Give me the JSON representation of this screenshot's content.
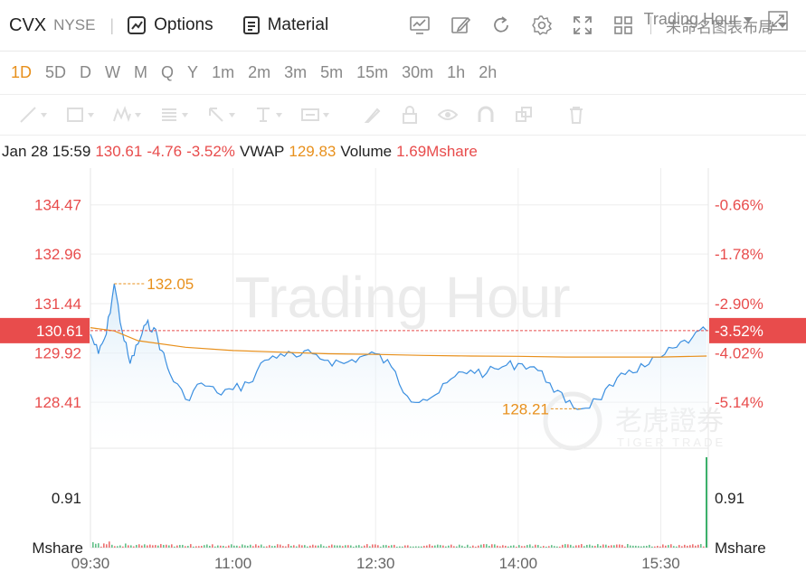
{
  "header": {
    "ticker": "CVX",
    "exchange": "NYSE",
    "options_label": "Options",
    "material_label": "Material",
    "layout_label": "未命名图表布局"
  },
  "periods": [
    "1D",
    "5D",
    "D",
    "W",
    "M",
    "Q",
    "Y",
    "1m",
    "2m",
    "3m",
    "5m",
    "15m",
    "30m",
    "1h",
    "2h"
  ],
  "active_period": "1D",
  "session_label": "Trading Hour",
  "info": {
    "datetime": "Jan 28 15:59",
    "price": "130.61",
    "change": "-4.76",
    "change_pct": "-3.52%",
    "vwap_label": "VWAP",
    "vwap_value": "129.83",
    "volume_label": "Volume",
    "volume_value": "1.69Mshare"
  },
  "colors": {
    "down": "#e84c4c",
    "vwap": "#e8901c",
    "price_line": "#3b8fe0",
    "grid": "#eeeeee"
  },
  "watermark": {
    "text": "Trading Hour",
    "brand_cn": "老虎證券",
    "brand_en": "TIGER TRADE"
  },
  "chart_data": {
    "type": "line",
    "x_ticks": [
      "09:30",
      "11:00",
      "12:30",
      "14:00",
      "15:30"
    ],
    "y_left_ticks": [
      "134.47",
      "132.96",
      "131.44",
      "129.92",
      "128.41"
    ],
    "y_right_ticks": [
      "-0.66%",
      "-1.78%",
      "-2.90%",
      "-4.02%",
      "-5.14%"
    ],
    "ylim": [
      127.0,
      135.6
    ],
    "current_price_label": "130.61",
    "current_pct_label": "-3.52%",
    "high_label": "132.05",
    "low_label": "128.21",
    "volume_axis": {
      "tick": "0.91",
      "unit": "Mshare"
    },
    "series": [
      {
        "name": "Price",
        "x": [
          "09:30",
          "09:35",
          "09:40",
          "09:45",
          "09:50",
          "09:55",
          "10:00",
          "10:05",
          "10:10",
          "10:15",
          "10:20",
          "10:30",
          "10:40",
          "10:50",
          "11:00",
          "11:10",
          "11:20",
          "11:30",
          "11:40",
          "11:50",
          "12:00",
          "12:10",
          "12:20",
          "12:30",
          "12:40",
          "12:50",
          "13:00",
          "13:10",
          "13:20",
          "13:30",
          "13:40",
          "13:50",
          "14:00",
          "14:10",
          "14:20",
          "14:30",
          "14:40",
          "14:50",
          "15:00",
          "15:10",
          "15:20",
          "15:30",
          "15:40",
          "15:50",
          "15:59"
        ],
        "values": [
          130.5,
          129.9,
          130.5,
          132.05,
          130.6,
          129.6,
          130.2,
          130.8,
          130.7,
          130.0,
          129.3,
          128.5,
          129.0,
          128.7,
          128.8,
          129.0,
          129.7,
          129.9,
          129.8,
          129.9,
          129.7,
          129.6,
          129.8,
          129.9,
          129.5,
          128.6,
          128.5,
          128.7,
          129.2,
          129.4,
          129.3,
          129.5,
          129.6,
          129.5,
          129.0,
          128.4,
          128.21,
          128.5,
          128.9,
          129.4,
          129.5,
          129.8,
          130.1,
          130.4,
          130.61
        ]
      },
      {
        "name": "VWAP",
        "x": [
          "09:30",
          "09:45",
          "10:00",
          "10:30",
          "11:00",
          "11:30",
          "12:00",
          "12:30",
          "13:00",
          "13:30",
          "14:00",
          "14:30",
          "15:00",
          "15:30",
          "15:59"
        ],
        "values": [
          130.7,
          130.6,
          130.3,
          130.1,
          130.0,
          129.95,
          129.9,
          129.88,
          129.85,
          129.83,
          129.82,
          129.8,
          129.8,
          129.8,
          129.83
        ]
      }
    ]
  }
}
